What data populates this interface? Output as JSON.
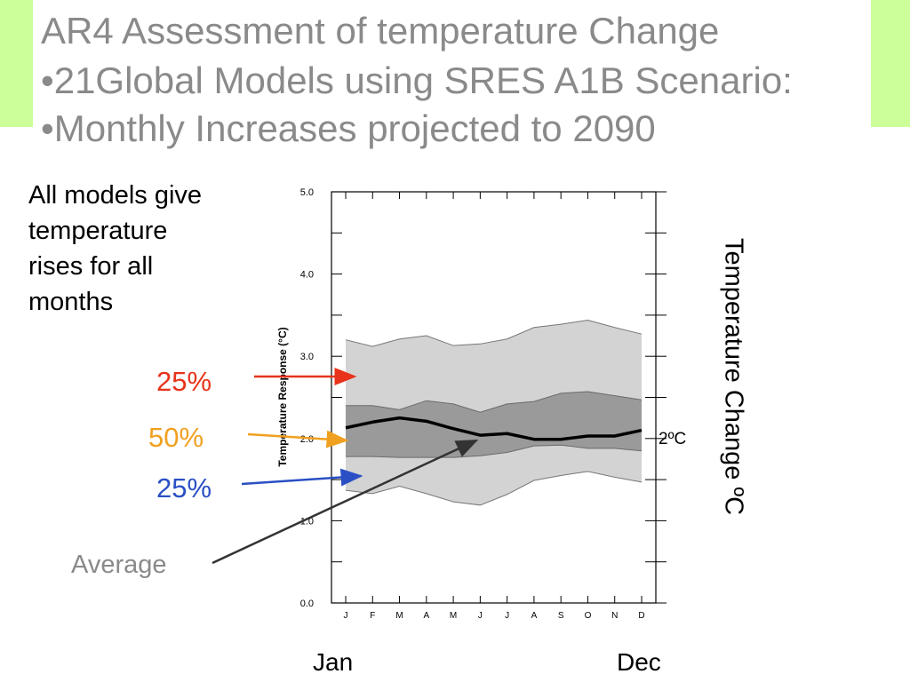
{
  "slide": {
    "title_line1": "AR4 Assessment of temperature Change",
    "title_line2": "•21Global Models using SRES A1B Scenario:",
    "title_line3": "•Monthly Increases projected to 2090",
    "note": "All models give temperature rises for all months",
    "label_upper_quartile": "25%",
    "label_middle": "50%",
    "label_lower_quartile": "25%",
    "label_average": "Average",
    "label_2c": "2ºC",
    "label_jan": "Jan",
    "label_dec": "Dec",
    "right_axis_label": "Temperature Change ºC",
    "colors": {
      "background_accent": "#ccff99",
      "title_gray": "#8a8a8a",
      "red": "#e8331a",
      "orange": "#f0a020",
      "blue": "#2a4fc4"
    }
  },
  "chart_data": {
    "type": "area",
    "ylabel": "Temperature Response (°C)",
    "ylim": [
      0,
      5
    ],
    "yticks": [
      "0.0",
      "1.0",
      "2.0",
      "3.0",
      "4.0",
      "5.0"
    ],
    "categories": [
      "J",
      "F",
      "M",
      "A",
      "M",
      "J",
      "J",
      "A",
      "S",
      "O",
      "N",
      "D"
    ],
    "series": [
      {
        "role": "max",
        "values": [
          3.2,
          3.12,
          3.21,
          3.25,
          3.13,
          3.15,
          3.21,
          3.35,
          3.39,
          3.44,
          3.35,
          3.27
        ]
      },
      {
        "role": "upper_quartile",
        "values": [
          2.4,
          2.4,
          2.35,
          2.46,
          2.42,
          2.32,
          2.42,
          2.45,
          2.55,
          2.57,
          2.52,
          2.47
        ]
      },
      {
        "role": "mean",
        "values": [
          2.13,
          2.2,
          2.25,
          2.21,
          2.12,
          2.04,
          2.06,
          1.99,
          1.99,
          2.03,
          2.03,
          2.1
        ]
      },
      {
        "role": "lower_quartile",
        "values": [
          1.78,
          1.78,
          1.77,
          1.77,
          1.77,
          1.79,
          1.83,
          1.91,
          1.92,
          1.88,
          1.88,
          1.85
        ]
      },
      {
        "role": "min",
        "values": [
          1.37,
          1.33,
          1.42,
          1.33,
          1.23,
          1.19,
          1.32,
          1.49,
          1.55,
          1.6,
          1.53,
          1.47
        ]
      }
    ]
  }
}
